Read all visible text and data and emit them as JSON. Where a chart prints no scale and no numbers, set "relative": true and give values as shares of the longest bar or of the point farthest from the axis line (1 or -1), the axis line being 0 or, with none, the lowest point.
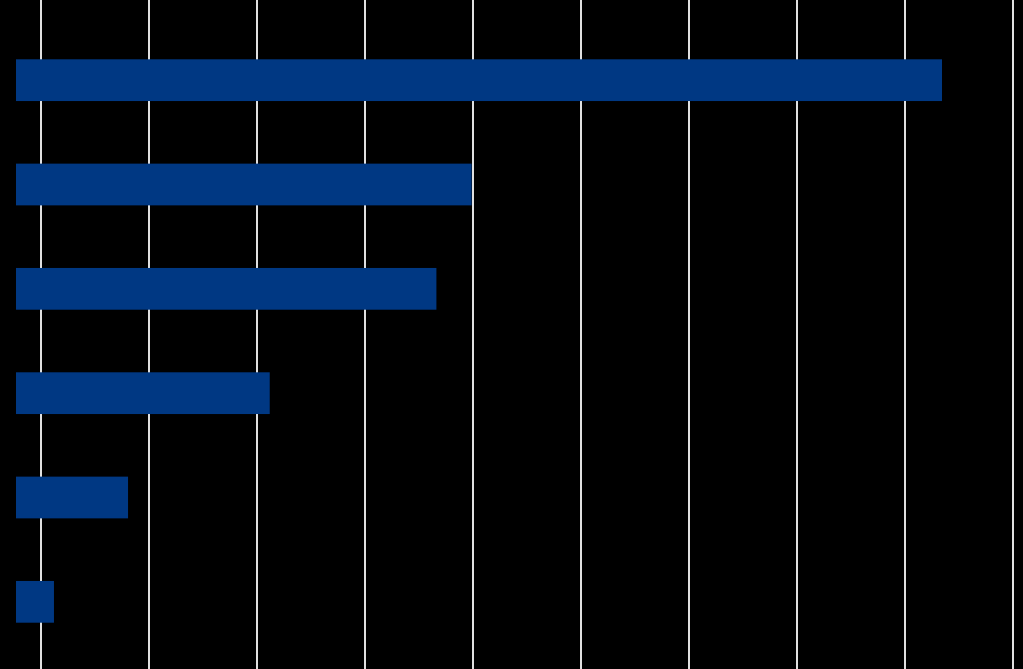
{
  "chart_data": {
    "type": "bar",
    "orientation": "horizontal",
    "relative": true,
    "grid": true,
    "categories": [
      null,
      null,
      null,
      null,
      null,
      null
    ],
    "values": [
      1,
      0.492,
      0.454,
      0.274,
      0.121,
      0.041
    ],
    "color": "#003883"
  }
}
